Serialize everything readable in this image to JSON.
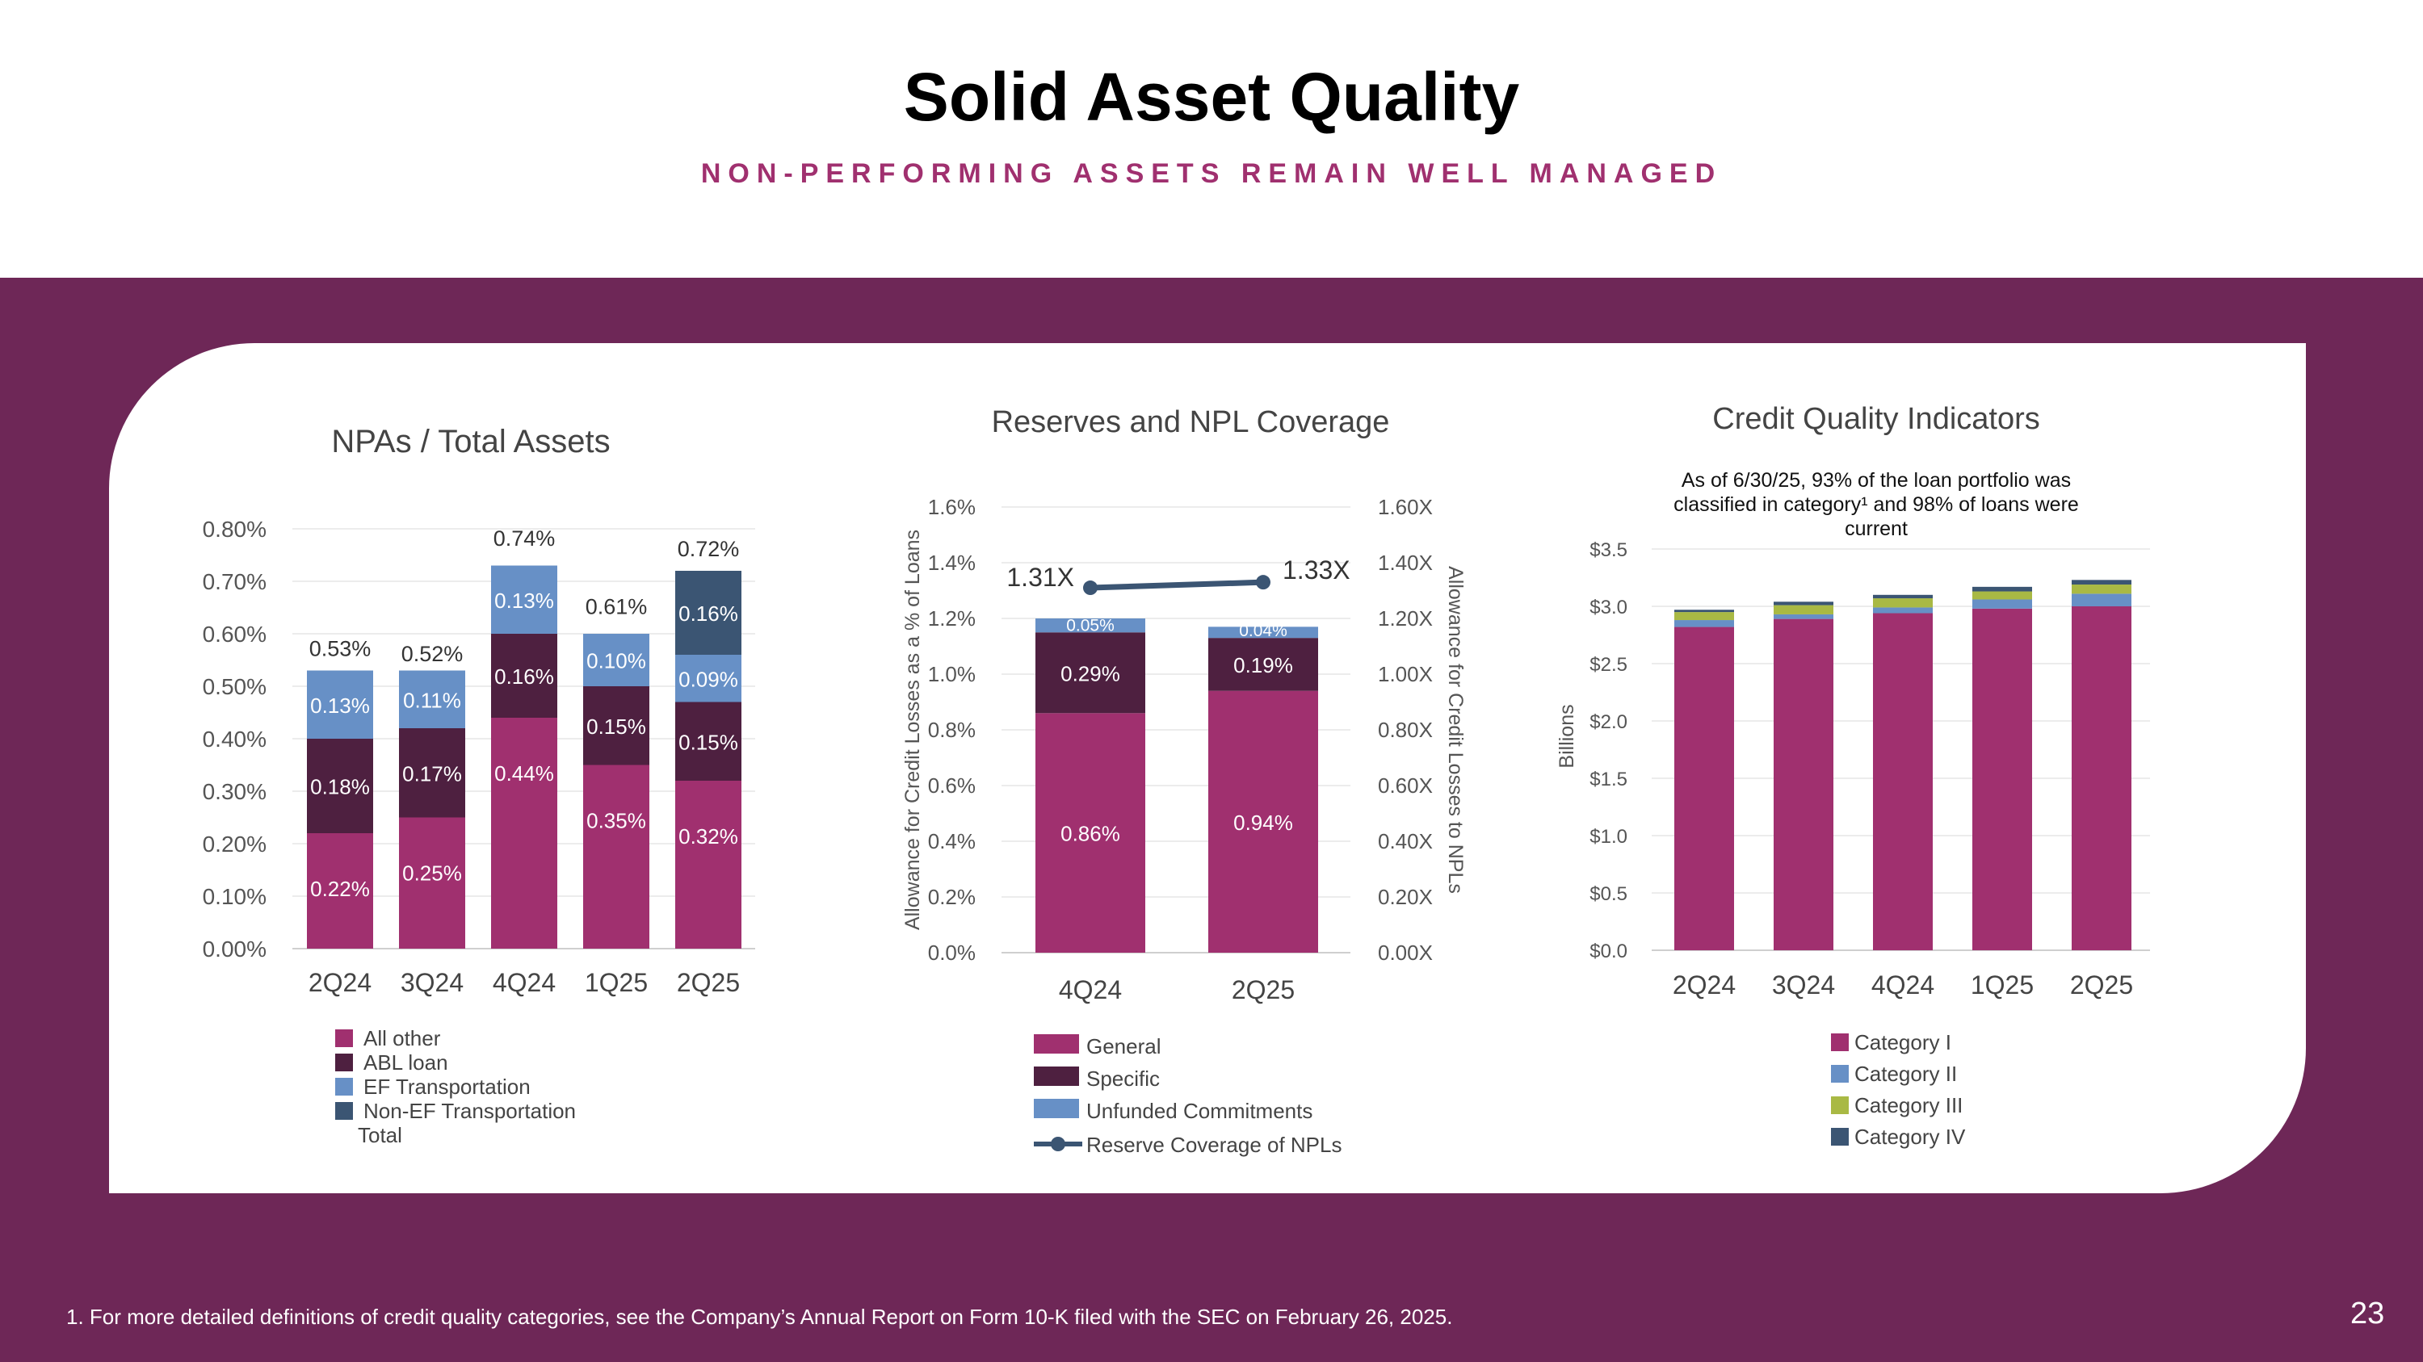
{
  "page": {
    "title": "Solid Asset Quality",
    "subtitle": "NON-PERFORMING ASSETS REMAIN WELL MANAGED",
    "footnote": "1. For more detailed definitions of credit quality categories, see the Company’s Annual Report on Form 10-K filed with the SEC on February 26, 2025.",
    "page_number": "23"
  },
  "colors": {
    "band": "#6e2757",
    "all_other": "#a0306f",
    "abl_loan": "#4e2040",
    "ef_transportation": "#6790c6",
    "non_ef_transportation": "#3b5573",
    "general": "#a0306f",
    "specific": "#4e2040",
    "unfunded": "#6790c6",
    "coverage_line": "#3b5573",
    "category_i": "#a0306f",
    "category_ii": "#6790c6",
    "category_iii": "#a9b944",
    "category_iv": "#3b5573"
  },
  "chart_data": [
    {
      "type": "bar",
      "stacked": true,
      "title": "NPAs / Total Assets",
      "categories": [
        "2Q24",
        "3Q24",
        "4Q24",
        "1Q25",
        "2Q25"
      ],
      "series": [
        {
          "name": "All other",
          "values": [
            0.22,
            0.25,
            0.44,
            0.35,
            0.32
          ],
          "labels": [
            "0.22%",
            "0.25%",
            "0.44%",
            "0.35%",
            "0.32%"
          ]
        },
        {
          "name": "ABL loan",
          "values": [
            0.18,
            0.17,
            0.16,
            0.15,
            0.15
          ],
          "labels": [
            "0.18%",
            "0.17%",
            "0.16%",
            "0.15%",
            "0.15%"
          ]
        },
        {
          "name": "EF Transportation",
          "values": [
            0.13,
            0.11,
            0.13,
            0.1,
            0.09
          ],
          "labels": [
            "0.13%",
            "0.11%",
            "0.13%",
            "0.10%",
            "0.09%"
          ]
        },
        {
          "name": "Non-EF Transportation",
          "values": [
            0,
            0,
            0,
            0,
            0.16
          ],
          "labels": [
            "",
            "",
            "",
            "",
            "0.16%"
          ]
        }
      ],
      "totals": {
        "name": "Total",
        "values": [
          0.53,
          0.52,
          0.74,
          0.61,
          0.72
        ],
        "labels": [
          "0.53%",
          "0.52%",
          "0.74%",
          "0.61%",
          "0.72%"
        ]
      },
      "ylim": [
        0,
        0.8
      ],
      "yticks": [
        "0.00%",
        "0.10%",
        "0.20%",
        "0.30%",
        "0.40%",
        "0.50%",
        "0.60%",
        "0.70%",
        "0.80%"
      ],
      "grid": true,
      "legend": "bottom"
    },
    {
      "type": "bar",
      "stacked": true,
      "title": "Reserves and NPL Coverage",
      "categories": [
        "4Q24",
        "2Q25"
      ],
      "series": [
        {
          "name": "General",
          "values": [
            0.86,
            0.94
          ],
          "labels": [
            "0.86%",
            "0.94%"
          ]
        },
        {
          "name": "Specific",
          "values": [
            0.29,
            0.19
          ],
          "labels": [
            "0.29%",
            "0.19%"
          ]
        },
        {
          "name": "Unfunded Commitments",
          "values": [
            0.05,
            0.04
          ],
          "labels": [
            "0.05%",
            "0.04%"
          ]
        }
      ],
      "line": {
        "name": "Reserve Coverage of NPLs",
        "values": [
          1.31,
          1.33
        ],
        "labels": [
          "1.31X",
          "1.33X"
        ],
        "axis": "right"
      },
      "ylabel": "Allowance for Credit Losses as a % of Loans",
      "ylabel_right": "Allowance for Credit Losses to NPLs",
      "ylim": [
        0,
        1.6
      ],
      "ylim_right": [
        0,
        1.6
      ],
      "yticks": [
        "0.0%",
        "0.2%",
        "0.4%",
        "0.6%",
        "0.8%",
        "1.0%",
        "1.2%",
        "1.4%",
        "1.6%"
      ],
      "yticks_right": [
        "0.00X",
        "0.20X",
        "0.40X",
        "0.60X",
        "0.80X",
        "1.00X",
        "1.20X",
        "1.40X",
        "1.60X"
      ],
      "grid": true,
      "legend": "bottom"
    },
    {
      "type": "bar",
      "stacked": true,
      "title": "Credit Quality Indicators",
      "annotation": "As of 6/30/25, 93% of the loan portfolio was classified in category¹ and 98% of loans were current",
      "annotation_lines": [
        "As of 6/30/25, 93% of the loan portfolio was",
        "classified in category¹ and 98% of loans were",
        "current"
      ],
      "categories": [
        "2Q24",
        "3Q24",
        "4Q24",
        "1Q25",
        "2Q25"
      ],
      "series": [
        {
          "name": "Category I",
          "values": [
            2.82,
            2.89,
            2.94,
            2.98,
            3.0
          ]
        },
        {
          "name": "Category II",
          "values": [
            0.06,
            0.04,
            0.05,
            0.08,
            0.11
          ]
        },
        {
          "name": "Category III",
          "values": [
            0.07,
            0.08,
            0.08,
            0.07,
            0.08
          ]
        },
        {
          "name": "Category IV",
          "values": [
            0.02,
            0.03,
            0.03,
            0.04,
            0.04
          ]
        }
      ],
      "ylabel": "Billions",
      "ylim": [
        0,
        3.5
      ],
      "yticks": [
        "$0.0",
        "$0.5",
        "$1.0",
        "$1.5",
        "$2.0",
        "$2.5",
        "$3.0",
        "$3.5"
      ],
      "grid": true,
      "legend": "bottom"
    }
  ]
}
